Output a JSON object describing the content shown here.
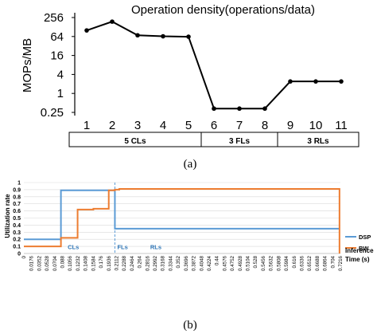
{
  "chart_data": [
    {
      "type": "line",
      "title": "Operation density(operations/data)",
      "ylabel": "MOPs/MB",
      "yscale": "log2",
      "ylim": [
        0.25,
        256
      ],
      "yticks": [
        "256",
        "64",
        "16",
        "4",
        "1",
        "0.25"
      ],
      "ytick_values": [
        256,
        64,
        16,
        4,
        1,
        0.25
      ],
      "categories": [
        "1",
        "2",
        "3",
        "4",
        "5",
        "6",
        "7",
        "8",
        "9",
        "10",
        "11"
      ],
      "series": [
        {
          "values": [
            100,
            190,
            70,
            65,
            63,
            0.33,
            0.33,
            0.33,
            2.4,
            2.4,
            2.4
          ],
          "color": "#000000"
        }
      ],
      "groups": [
        {
          "label": "5 CLs",
          "from": 1,
          "to": 5
        },
        {
          "label": "3 FLs",
          "from": 6,
          "to": 8
        },
        {
          "label": "3 RLs",
          "from": 9,
          "to": 11
        }
      ],
      "grid": false,
      "caption": "(a)"
    },
    {
      "type": "line",
      "ylabel": "Utilization rate",
      "xlabel": "Inference Time (s)",
      "ylim": [
        0,
        1
      ],
      "yticks": [
        "0",
        "0.1",
        "0.2",
        "0.3",
        "0.4",
        "0.5",
        "0.6",
        "0.7",
        "0.8",
        "0.9",
        "1"
      ],
      "xticks": [
        "0",
        "0.0176",
        "0.0352",
        "0.0528",
        "0.0704",
        "0.088",
        "0.1056",
        "0.1232",
        "0.1408",
        "0.1584",
        "0.176",
        "0.1936",
        "0.2112",
        "0.2288",
        "0.2464",
        "0.264",
        "0.2816",
        "0.2992",
        "0.3168",
        "0.3344",
        "0.352",
        "0.3696",
        "0.3872",
        "0.4048",
        "0.4224",
        "0.44",
        "0.4576",
        "0.4752",
        "0.4928",
        "0.5104",
        "0.528",
        "0.5456",
        "0.5632",
        "0.5808",
        "0.5984",
        "0.616",
        "0.6336",
        "0.6512",
        "0.6688",
        "0.6864",
        "0.704",
        "0.7216"
      ],
      "xlim": [
        0,
        0.7216
      ],
      "series": [
        {
          "name": "DSP",
          "color": "#5B9BD5",
          "x": [
            0,
            0.0845,
            0.0845,
            0.2075,
            0.2075,
            0.7195
          ],
          "y": [
            0.2,
            0.2,
            0.89,
            0.89,
            0.35,
            0.35
          ]
        },
        {
          "name": "BW",
          "color": "#ED7D31",
          "x": [
            0,
            0.0845,
            0.0845,
            0.1225,
            0.1225,
            0.1585,
            0.1585,
            0.1935,
            0.1935,
            0.2075,
            0.2075,
            0.2175,
            0.2175,
            0.7195,
            0.7195
          ],
          "y": [
            0.1,
            0.1,
            0.22,
            0.22,
            0.62,
            0.62,
            0.63,
            0.63,
            0.89,
            0.89,
            0.9,
            0.9,
            0.91,
            0.91,
            0.0
          ]
        }
      ],
      "boundaries": [
        0.2075
      ],
      "region_labels": [
        {
          "label": "CLs",
          "x": 0.1
        },
        {
          "label": "FLs",
          "x": 0.213
        },
        {
          "label": "RLs",
          "x": 0.288
        }
      ],
      "legend": "right",
      "grid": true,
      "caption": "(b)"
    }
  ]
}
